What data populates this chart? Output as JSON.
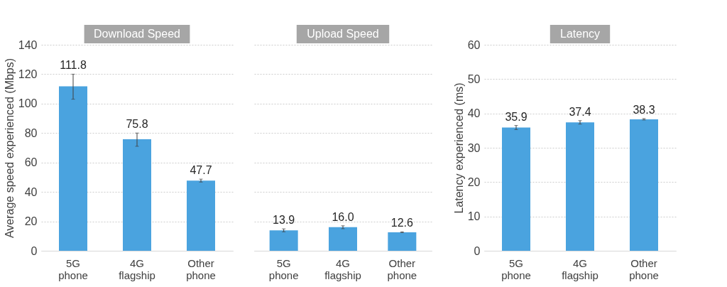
{
  "chart_data": [
    {
      "type": "bar",
      "title": "Download Speed",
      "ylabel": "Average speed experienced (Mbps)",
      "categories": [
        "5G phone",
        "4G flagship",
        "Other phone"
      ],
      "values": [
        111.8,
        75.8,
        47.7
      ],
      "errors": [
        [
          103,
          120
        ],
        [
          71,
          80
        ],
        1
      ],
      "color": "#4aa3df",
      "ylim": [
        0,
        140
      ],
      "yticks": [
        0,
        20,
        40,
        60,
        80,
        100,
        120,
        140
      ],
      "grid": "y",
      "data_labels": true
    },
    {
      "type": "bar",
      "title": "Upload Speed",
      "categories": [
        "5G phone",
        "4G flagship",
        "Other phone"
      ],
      "values": [
        13.9,
        16.0,
        12.6
      ],
      "value_labels": [
        "13.9",
        "16.0",
        "12.6"
      ],
      "errors": [
        1,
        1,
        0.3
      ],
      "color": "#4aa3df",
      "ylim": [
        0,
        140
      ],
      "yticks": [
        0,
        20,
        40,
        60,
        80,
        100,
        120,
        140
      ],
      "grid": "y",
      "data_labels": true,
      "tick_labels": "x"
    },
    {
      "type": "bar",
      "title": "Latency",
      "ylabel": "Latency experienced (ms)",
      "categories": [
        "5G phone",
        "4G flagship",
        "Other phone"
      ],
      "values": [
        35.9,
        37.4,
        38.3
      ],
      "errors": [
        0.6,
        0.5,
        0.2
      ],
      "color": "#4aa3df",
      "ylim": [
        0,
        60
      ],
      "yticks": [
        0,
        10,
        20,
        30,
        40,
        50,
        60
      ],
      "grid": "y",
      "data_labels": true
    }
  ]
}
